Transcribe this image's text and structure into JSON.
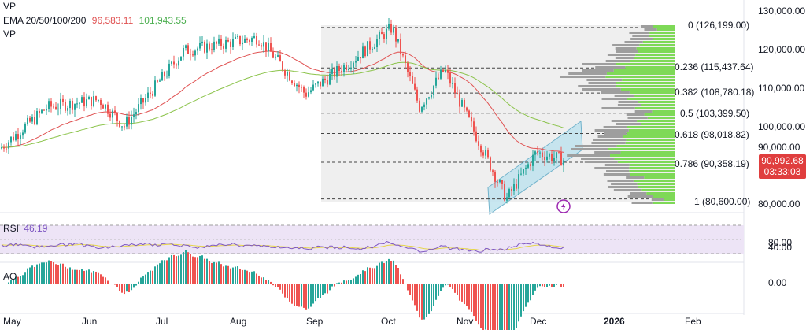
{
  "legend": {
    "vp_label": "VP",
    "ema_label": "EMA 20/50/100/200",
    "ema_value_1": "96,583.11",
    "ema_value_2": "101,943.55",
    "vp2_label": "VP",
    "rsi_label": "RSI",
    "rsi_value": "46.19",
    "ao_label": "AO"
  },
  "price_axis": {
    "ticks": [
      "130,000.00",
      "120,000.00",
      "110,000.00",
      "100,000.00",
      "90,000.00",
      "80,000.00"
    ],
    "current_price": "90,992.68",
    "countdown": "03:33:03"
  },
  "rsi_axis": {
    "ticks": [
      "80.00",
      "40.00"
    ]
  },
  "ao_axis": {
    "ticks": [
      "0.00"
    ]
  },
  "time_axis": {
    "labels": [
      "May",
      "Jun",
      "Jul",
      "Aug",
      "Sep",
      "Oct",
      "Nov",
      "Dec",
      "2026",
      "Feb"
    ]
  },
  "fib_levels": [
    {
      "label": "0 (126,199.00)"
    },
    {
      "label": "0.236 (115,437.64)"
    },
    {
      "label": "0.382 (108,780.18)"
    },
    {
      "label": "0.5 (103,399.50)"
    },
    {
      "label": "0.618 (98,018.82)"
    },
    {
      "label": "0.786 (90,358.19)"
    },
    {
      "label": "1 (80,600.00)"
    }
  ],
  "colors": {
    "up": "#26a69a",
    "down": "#ef5350",
    "ema_red": "#e05252",
    "ema_green": "#8bc34a",
    "rsi_line": "#7e57c2",
    "rsi_ma": "#e6d64a",
    "vp_green": "#7ed957",
    "vp_gray": "#9e9e9e",
    "channel": "#a8d8e8"
  },
  "chart_data": {
    "type": "candlestick",
    "y_range": [
      78000,
      131000
    ],
    "close_path": [
      {
        "x": "2025-05-01",
        "y": 94000
      },
      {
        "x": "2025-05-20",
        "y": 105000
      },
      {
        "x": "2025-06-10",
        "y": 107000
      },
      {
        "x": "2025-06-20",
        "y": 100000
      },
      {
        "x": "2025-07-14",
        "y": 120000
      },
      {
        "x": "2025-08-13",
        "y": 123500
      },
      {
        "x": "2025-09-01",
        "y": 108500
      },
      {
        "x": "2025-09-19",
        "y": 117000
      },
      {
        "x": "2025-10-06",
        "y": 126199
      },
      {
        "x": "2025-10-17",
        "y": 105000
      },
      {
        "x": "2025-10-27",
        "y": 115000
      },
      {
        "x": "2025-11-21",
        "y": 80600
      },
      {
        "x": "2025-12-03",
        "y": 93000
      },
      {
        "x": "2025-12-14",
        "y": 90992.68
      }
    ]
  }
}
